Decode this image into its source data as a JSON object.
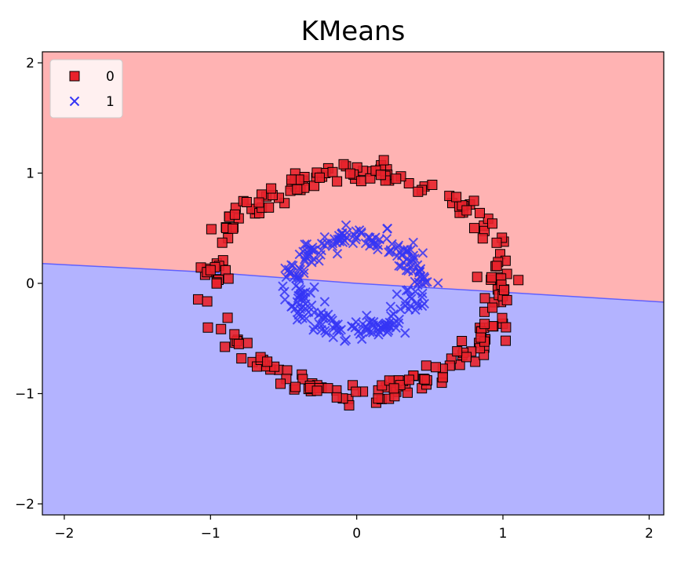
{
  "chart_data": {
    "type": "scatter",
    "title": "KMeans",
    "xlabel": "",
    "ylabel": "",
    "xlim": [
      -2.15,
      2.1
    ],
    "ylim": [
      -2.1,
      2.1
    ],
    "x_ticks": [
      -2,
      -1,
      0,
      1,
      2
    ],
    "x_tick_labels": [
      "−2",
      "−1",
      "0",
      "1",
      "2"
    ],
    "y_ticks": [
      -2,
      -1,
      0,
      1,
      2
    ],
    "y_tick_labels": [
      "−2",
      "−1",
      "0",
      "1",
      "2"
    ],
    "grid": false,
    "legend": {
      "position": "top-left"
    },
    "decision_regions": {
      "boundary": "approximately linear, y ≈ 0.17 at x = -2.15 to y ≈ -0.17 at x = 2.1",
      "boundary_points": [
        [
          -2.15,
          0.18
        ],
        [
          -1.0,
          0.1
        ],
        [
          0.0,
          0.0
        ],
        [
          1.0,
          -0.08
        ],
        [
          2.1,
          -0.17
        ]
      ],
      "upper_color": "#ffb3b3",
      "lower_color": "#b3b3ff",
      "boundary_color": "#6060ff"
    },
    "series": [
      {
        "name": "0",
        "marker": "square",
        "color": "#e8222b",
        "edge_color": "#000000",
        "shape": "ring",
        "center": [
          0,
          0
        ],
        "radius": 1.0,
        "noise": 0.05,
        "count": 250
      },
      {
        "name": "1",
        "marker": "x",
        "color": "#3535f5",
        "shape": "ring",
        "center": [
          0,
          0
        ],
        "radius": 0.42,
        "noise": 0.05,
        "count": 250
      }
    ]
  }
}
